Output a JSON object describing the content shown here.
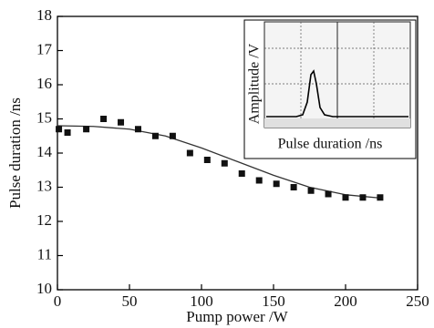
{
  "chart_data": {
    "type": "scatter",
    "x_label": "Pump power /W",
    "y_label": "Pulse duration /ns",
    "xlim": [
      0,
      250
    ],
    "xticks": [
      0,
      50,
      100,
      150,
      200,
      250
    ],
    "ylim": [
      10,
      18
    ],
    "yticks": [
      10,
      11,
      12,
      13,
      14,
      15,
      16,
      17,
      18
    ],
    "x": [
      1,
      7,
      20,
      32,
      44,
      56,
      68,
      80,
      92,
      104,
      116,
      128,
      140,
      152,
      164,
      176,
      188,
      200,
      212,
      224
    ],
    "series": [
      {
        "color": "#111111",
        "values": [
          14.7,
          14.6,
          14.7,
          15.0,
          14.9,
          14.7,
          14.5,
          14.5,
          14.0,
          13.8,
          13.7,
          13.4,
          13.2,
          13.1,
          13.0,
          12.9,
          12.8,
          12.7,
          12.7,
          12.7
        ]
      }
    ],
    "fit": {
      "color": "#333333",
      "x": [
        0,
        25,
        50,
        75,
        100,
        125,
        150,
        175,
        200,
        225
      ],
      "values": [
        14.8,
        14.78,
        14.7,
        14.5,
        14.15,
        13.75,
        13.35,
        13.0,
        12.78,
        12.68
      ]
    },
    "inset": {
      "x_label": "Pulse duration /ns",
      "y_label": "Amplitude /V"
    }
  }
}
